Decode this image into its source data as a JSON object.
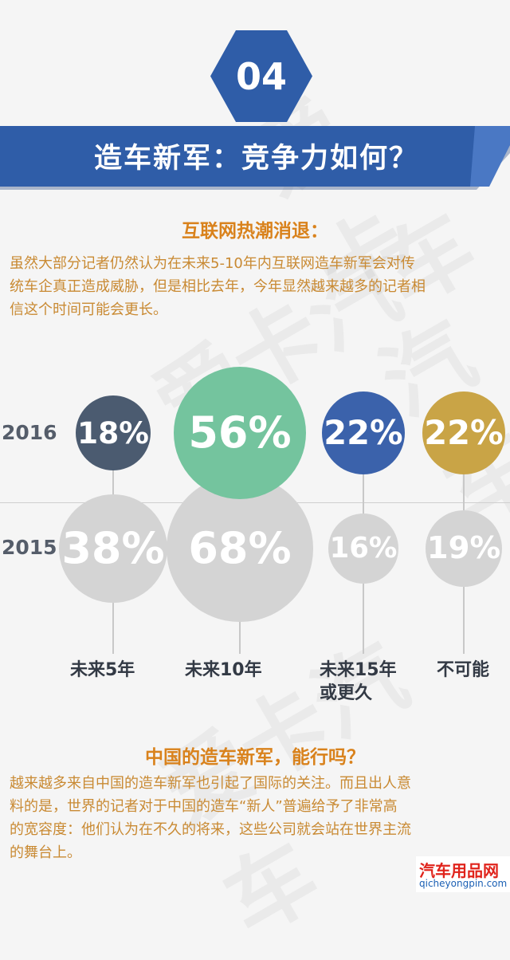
{
  "section_number": "04",
  "banner_title": "造车新军：竞争力如何？",
  "part1": {
    "subtitle": "互联网热潮消退：",
    "paragraph_lines": [
      "虽然大部分记者仍然认为在未来5-10年内互联网造车新军会对传",
      "统车企真正造成威胁，但是相比去年，今年显然越来越多的记者相",
      "信这个时间可能会更长。"
    ]
  },
  "chart_data": {
    "type": "bubble",
    "categories": [
      "未来5年",
      "未来10年",
      "未来15年或更久",
      "不可能"
    ],
    "category_lines": [
      [
        "未来5年"
      ],
      [
        "未来10年"
      ],
      [
        "未来15年",
        "或更久"
      ],
      [
        "不可能"
      ]
    ],
    "series": [
      {
        "name": "2016",
        "values": [
          18,
          56,
          22,
          22
        ],
        "labels": [
          "18%",
          "56%",
          "22%",
          "22%"
        ],
        "colors": [
          "#4b5b70",
          "#74c49e",
          "#3b62ab",
          "#c9a446"
        ]
      },
      {
        "name": "2015",
        "values": [
          38,
          68,
          16,
          19
        ],
        "labels": [
          "38%",
          "68%",
          "16%",
          "19%"
        ],
        "colors": [
          "#d4d4d4",
          "#d4d4d4",
          "#d4d4d4",
          "#d4d4d4"
        ]
      }
    ]
  },
  "part2": {
    "subtitle": "中国的造车新军，能行吗？",
    "paragraph_lines": [
      "越来越多来自中国的造车新军也引起了国际的关注。而且出人意",
      "料的是，世界的记者对于中国的造车“新人”普遍给予了非常高",
      "的宽容度：他们认为在不久的将来，这些公司就会站在世界主流",
      "的舞台上。"
    ]
  },
  "logo": {
    "cn": "汽车用品网",
    "en": "qicheyongpin.com"
  },
  "watermark": "爱卡汽车",
  "colors": {
    "banner_blue": "#2f5da8",
    "banner_dark": "#1f3f7a",
    "accent_orange": "#d9821c",
    "body_text": "#c98a33"
  }
}
